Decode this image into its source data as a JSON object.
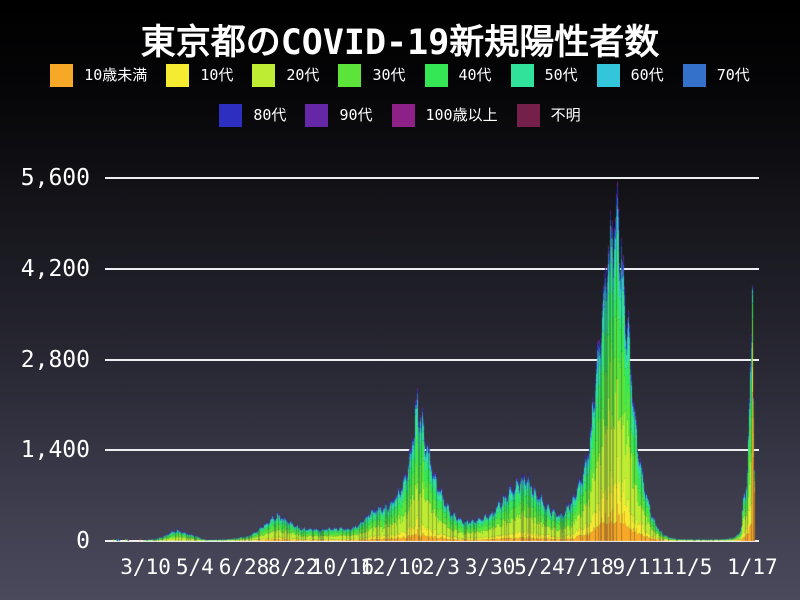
{
  "title": "東京都のCOVID-19新規陽性者数",
  "background": {
    "top": "#000000",
    "bottom": "#4a495c"
  },
  "grid_color": "#edeef1",
  "chart_data": {
    "type": "area",
    "stacked": true,
    "title": "東京都のCOVID-19新規陽性者数",
    "xlabel": "",
    "ylabel": "",
    "ylim": [
      0,
      5600
    ],
    "grid": true,
    "legend_position": "top",
    "x_range": [
      "2020-01-28",
      "2022-01-19"
    ],
    "y_ticks": [
      {
        "label": "5,600",
        "value": 5600
      },
      {
        "label": "4,200",
        "value": 4200
      },
      {
        "label": "2,800",
        "value": 2800
      },
      {
        "label": "1,400",
        "value": 1400
      },
      {
        "label": "0",
        "value": 0
      }
    ],
    "x_ticks": [
      {
        "label": "3/10",
        "date": "2020-03-10"
      },
      {
        "label": "5/4",
        "date": "2020-05-04"
      },
      {
        "label": "6/28",
        "date": "2020-06-28"
      },
      {
        "label": "8/22",
        "date": "2020-08-22"
      },
      {
        "label": "10/16",
        "date": "2020-10-16"
      },
      {
        "label": "12/10",
        "date": "2020-12-10"
      },
      {
        "label": "2/3",
        "date": "2021-02-03"
      },
      {
        "label": "3/30",
        "date": "2021-03-30"
      },
      {
        "label": "5/24",
        "date": "2021-05-24"
      },
      {
        "label": "7/18",
        "date": "2021-07-18"
      },
      {
        "label": "9/11",
        "date": "2021-09-11"
      },
      {
        "label": "11/5",
        "date": "2021-11-05"
      },
      {
        "label": "1/17",
        "date": "2022-01-17"
      }
    ],
    "stack_order": "bottom_to_top",
    "age_groups": [
      {
        "name": "10歳未満",
        "color": "#F7A826",
        "share": 0.055
      },
      {
        "name": "10代",
        "color": "#F5EC32",
        "share": 0.085
      },
      {
        "name": "20代",
        "color": "#BEEC33",
        "share": 0.27
      },
      {
        "name": "30代",
        "color": "#5CE43A",
        "share": 0.2
      },
      {
        "name": "40代",
        "color": "#35E755",
        "share": 0.155
      },
      {
        "name": "50代",
        "color": "#31E29B",
        "share": 0.115
      },
      {
        "name": "60代",
        "color": "#33C5D9",
        "share": 0.05
      },
      {
        "name": "70代",
        "color": "#3471CB",
        "share": 0.032
      },
      {
        "name": "80代",
        "color": "#2C2FBF",
        "share": 0.022
      },
      {
        "name": "90代",
        "color": "#6627A6",
        "share": 0.011
      },
      {
        "name": "100歳以上",
        "color": "#8E2188",
        "share": 0.001
      },
      {
        "name": "不明",
        "color": "#75204B",
        "share": 0.004
      }
    ],
    "weekly_peak_totals": [
      [
        "2020-01-28",
        2
      ],
      [
        "2020-02-04",
        3
      ],
      [
        "2020-02-11",
        3
      ],
      [
        "2020-02-18",
        5
      ],
      [
        "2020-02-25",
        9
      ],
      [
        "2020-03-03",
        13
      ],
      [
        "2020-03-10",
        18
      ],
      [
        "2020-03-17",
        30
      ],
      [
        "2020-03-24",
        55
      ],
      [
        "2020-03-31",
        95
      ],
      [
        "2020-04-07",
        165
      ],
      [
        "2020-04-14",
        200
      ],
      [
        "2020-04-21",
        160
      ],
      [
        "2020-04-28",
        125
      ],
      [
        "2020-05-05",
        90
      ],
      [
        "2020-05-12",
        35
      ],
      [
        "2020-05-19",
        18
      ],
      [
        "2020-05-26",
        18
      ],
      [
        "2020-06-02",
        26
      ],
      [
        "2020-06-09",
        32
      ],
      [
        "2020-06-16",
        42
      ],
      [
        "2020-06-23",
        60
      ],
      [
        "2020-06-30",
        78
      ],
      [
        "2020-07-07",
        130
      ],
      [
        "2020-07-14",
        200
      ],
      [
        "2020-07-21",
        290
      ],
      [
        "2020-07-28",
        380
      ],
      [
        "2020-08-04",
        470
      ],
      [
        "2020-08-11",
        400
      ],
      [
        "2020-08-18",
        320
      ],
      [
        "2020-08-25",
        260
      ],
      [
        "2020-09-01",
        220
      ],
      [
        "2020-09-08",
        210
      ],
      [
        "2020-09-15",
        210
      ],
      [
        "2020-09-22",
        200
      ],
      [
        "2020-09-29",
        220
      ],
      [
        "2020-10-06",
        220
      ],
      [
        "2020-10-13",
        220
      ],
      [
        "2020-10-20",
        210
      ],
      [
        "2020-10-27",
        230
      ],
      [
        "2020-11-03",
        290
      ],
      [
        "2020-11-10",
        400
      ],
      [
        "2020-11-17",
        530
      ],
      [
        "2020-11-24",
        570
      ],
      [
        "2020-12-01",
        590
      ],
      [
        "2020-12-08",
        650
      ],
      [
        "2020-12-15",
        820
      ],
      [
        "2020-12-22",
        950
      ],
      [
        "2020-12-29",
        1350
      ],
      [
        "2021-01-07",
        2520
      ],
      [
        "2021-01-12",
        2100
      ],
      [
        "2021-01-19",
        1600
      ],
      [
        "2021-01-26",
        1150
      ],
      [
        "2021-02-02",
        900
      ],
      [
        "2021-02-09",
        620
      ],
      [
        "2021-02-16",
        480
      ],
      [
        "2021-02-23",
        380
      ],
      [
        "2021-03-02",
        350
      ],
      [
        "2021-03-09",
        360
      ],
      [
        "2021-03-16",
        370
      ],
      [
        "2021-03-23",
        430
      ],
      [
        "2021-03-30",
        480
      ],
      [
        "2021-04-06",
        580
      ],
      [
        "2021-04-13",
        740
      ],
      [
        "2021-04-20",
        860
      ],
      [
        "2021-04-27",
        960
      ],
      [
        "2021-05-04",
        1120
      ],
      [
        "2021-05-11",
        1050
      ],
      [
        "2021-05-18",
        900
      ],
      [
        "2021-05-25",
        750
      ],
      [
        "2021-06-01",
        600
      ],
      [
        "2021-06-08",
        510
      ],
      [
        "2021-06-15",
        470
      ],
      [
        "2021-06-22",
        560
      ],
      [
        "2021-06-29",
        710
      ],
      [
        "2021-07-06",
        950
      ],
      [
        "2021-07-13",
        1310
      ],
      [
        "2021-07-20",
        1850
      ],
      [
        "2021-07-27",
        3200
      ],
      [
        "2021-08-03",
        4300
      ],
      [
        "2021-08-10",
        5200
      ],
      [
        "2021-08-17",
        5750
      ],
      [
        "2021-08-24",
        4800
      ],
      [
        "2021-08-31",
        3700
      ],
      [
        "2021-09-07",
        2200
      ],
      [
        "2021-09-14",
        1250
      ],
      [
        "2021-09-21",
        750
      ],
      [
        "2021-09-28",
        400
      ],
      [
        "2021-10-05",
        180
      ],
      [
        "2021-10-12",
        90
      ],
      [
        "2021-10-19",
        50
      ],
      [
        "2021-10-26",
        36
      ],
      [
        "2021-11-02",
        28
      ],
      [
        "2021-11-09",
        26
      ],
      [
        "2021-11-16",
        25
      ],
      [
        "2021-11-23",
        25
      ],
      [
        "2021-11-30",
        25
      ],
      [
        "2021-12-07",
        26
      ],
      [
        "2021-12-14",
        32
      ],
      [
        "2021-12-21",
        42
      ],
      [
        "2021-12-28",
        65
      ],
      [
        "2022-01-04",
        180
      ],
      [
        "2022-01-07",
        920
      ],
      [
        "2022-01-09",
        820
      ],
      [
        "2022-01-11",
        1300
      ],
      [
        "2022-01-13",
        2200
      ],
      [
        "2022-01-15",
        3900
      ],
      [
        "2022-01-17",
        4560
      ],
      [
        "2022-01-18",
        1200
      ],
      [
        "2022-01-19",
        1100
      ]
    ]
  }
}
